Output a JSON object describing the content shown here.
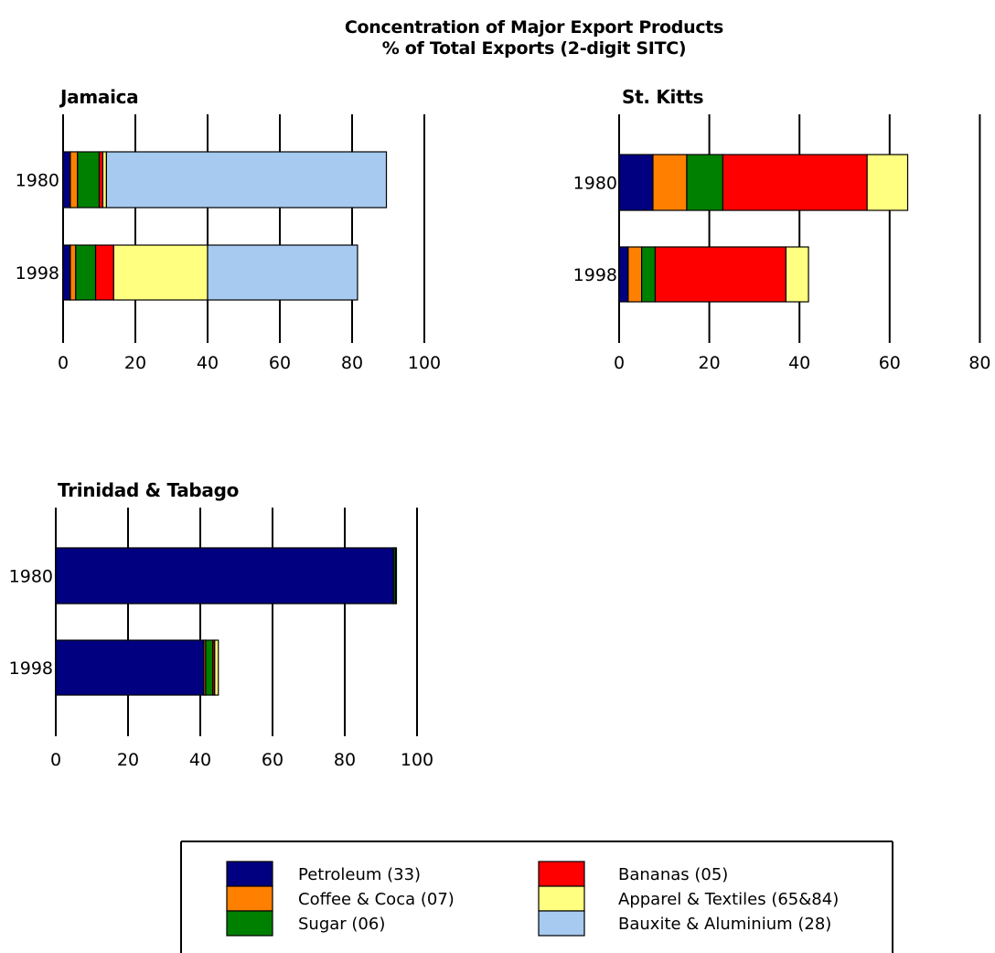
{
  "chart_title_line1": "Concentration of Major Export Products",
  "chart_title_line2": "% of Total Exports (2-digit SITC)",
  "legend": [
    {
      "name": "Petroleum (33)",
      "color": "#000080"
    },
    {
      "name": "Coffee & Coca (07)",
      "color": "#ff8000"
    },
    {
      "name": "Sugar (06)",
      "color": "#008000"
    },
    {
      "name": "Bananas (05)",
      "color": "#ff0000"
    },
    {
      "name": "Apparel & Textiles (65&84)",
      "color": "#ffff80"
    },
    {
      "name": "Bauxite & Aluminium (28)",
      "color": "#a6caf0"
    }
  ],
  "chart_data": [
    {
      "type": "bar",
      "orientation": "horizontal",
      "stacked": true,
      "title": "Jamaica",
      "categories": [
        "1980",
        "1998"
      ],
      "xlim": [
        0,
        100
      ],
      "xticks": [
        "0",
        "20",
        "40",
        "60",
        "80",
        "100"
      ],
      "grid": true,
      "series": [
        {
          "name": "Petroleum (33)",
          "values": [
            2,
            2
          ],
          "color": "#000080"
        },
        {
          "name": "Coffee & Coca (07)",
          "values": [
            2,
            1.5
          ],
          "color": "#ff8000"
        },
        {
          "name": "Sugar (06)",
          "values": [
            6,
            5.5
          ],
          "color": "#008000"
        },
        {
          "name": "Bananas (05)",
          "values": [
            1,
            5
          ],
          "color": "#ff0000"
        },
        {
          "name": "Apparel & Textiles (65&84)",
          "values": [
            1,
            26
          ],
          "color": "#ffff80"
        },
        {
          "name": "Bauxite & Aluminium (28)",
          "values": [
            77.5,
            41.5
          ],
          "color": "#a6caf0"
        }
      ]
    },
    {
      "type": "bar",
      "orientation": "horizontal",
      "stacked": true,
      "title": "St. Kitts",
      "categories": [
        "1980",
        "1998"
      ],
      "xlim": [
        0,
        80
      ],
      "xticks": [
        "0",
        "20",
        "40",
        "60",
        "80"
      ],
      "grid": true,
      "series": [
        {
          "name": "Petroleum (33)",
          "values": [
            7.5,
            2
          ],
          "color": "#000080"
        },
        {
          "name": "Coffee & Coca (07)",
          "values": [
            7.5,
            3
          ],
          "color": "#ff8000"
        },
        {
          "name": "Sugar (06)",
          "values": [
            8,
            3
          ],
          "color": "#008000"
        },
        {
          "name": "Bananas (05)",
          "values": [
            32,
            29
          ],
          "color": "#ff0000"
        },
        {
          "name": "Apparel & Textiles (65&84)",
          "values": [
            9,
            5
          ],
          "color": "#ffff80"
        },
        {
          "name": "Bauxite & Aluminium (28)",
          "values": [
            0,
            0
          ],
          "color": "#a6caf0"
        }
      ]
    },
    {
      "type": "bar",
      "orientation": "horizontal",
      "stacked": true,
      "title": "Trinidad & Tabago",
      "categories": [
        "1980",
        "1998"
      ],
      "xlim": [
        0,
        100
      ],
      "xticks": [
        "0",
        "20",
        "40",
        "60",
        "80",
        "100"
      ],
      "grid": true,
      "series": [
        {
          "name": "Petroleum (33)",
          "values": [
            93.5,
            41
          ],
          "color": "#000080"
        },
        {
          "name": "Coffee & Coca (07)",
          "values": [
            0,
            0.5
          ],
          "color": "#ff8000"
        },
        {
          "name": "Sugar (06)",
          "values": [
            0.5,
            2
          ],
          "color": "#008000"
        },
        {
          "name": "Bananas (05)",
          "values": [
            0,
            0.5
          ],
          "color": "#ff0000"
        },
        {
          "name": "Apparel & Textiles (65&84)",
          "values": [
            0.3,
            1
          ],
          "color": "#ffff80"
        },
        {
          "name": "Bauxite & Aluminium (28)",
          "values": [
            0,
            0
          ],
          "color": "#a6caf0"
        }
      ]
    }
  ]
}
